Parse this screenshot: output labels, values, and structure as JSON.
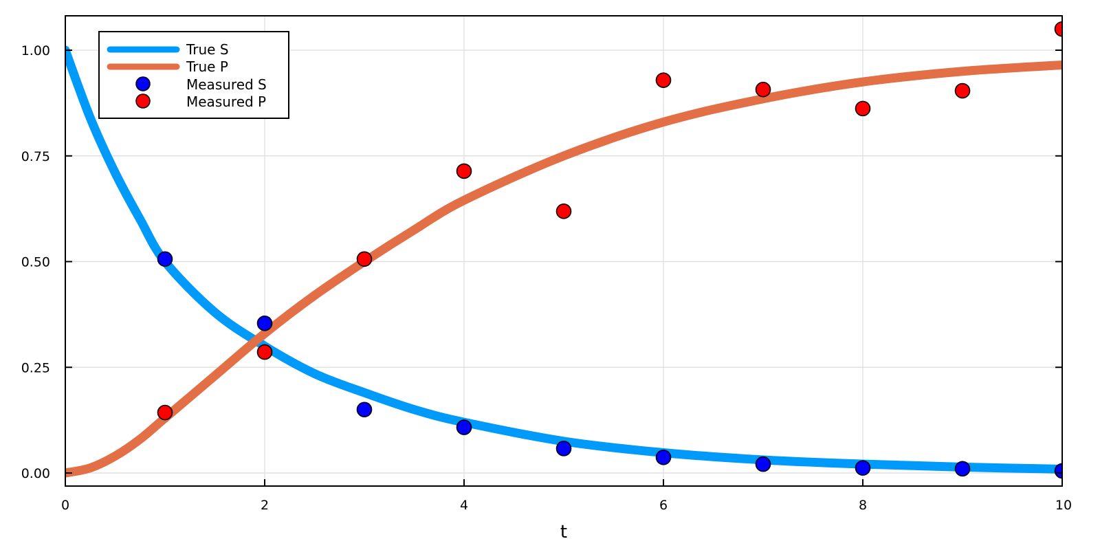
{
  "chart_data": {
    "type": "line",
    "title": "",
    "xlabel": "t",
    "ylabel": "",
    "xlim": [
      0,
      10
    ],
    "ylim": [
      -0.03,
      1.08
    ],
    "x_ticks": [
      0,
      2,
      4,
      6,
      8,
      10
    ],
    "x_tick_labels": [
      "0",
      "2",
      "4",
      "6",
      "8",
      "10"
    ],
    "y_ticks": [
      0,
      0.25,
      0.5,
      0.75,
      1.0
    ],
    "y_tick_labels": [
      "0.00",
      "0.25",
      "0.50",
      "0.75",
      "1.00"
    ],
    "grid": true,
    "legend_position": "top-left",
    "series": [
      {
        "name": "True S",
        "kind": "line",
        "color": "#009AFA",
        "x": [
          0,
          0.25,
          0.5,
          0.75,
          1,
          1.5,
          2,
          2.5,
          3,
          3.5,
          4,
          5,
          6,
          7,
          8,
          9,
          10
        ],
        "values": [
          1.0,
          0.84,
          0.71,
          0.6,
          0.5,
          0.38,
          0.3,
          0.235,
          0.19,
          0.15,
          0.12,
          0.075,
          0.048,
          0.031,
          0.021,
          0.014,
          0.009
        ]
      },
      {
        "name": "True P",
        "kind": "line",
        "color": "#E26F46",
        "x": [
          0,
          0.25,
          0.5,
          0.75,
          1,
          1.5,
          2,
          2.5,
          3,
          3.5,
          4,
          5,
          6,
          7,
          8,
          9,
          10
        ],
        "values": [
          0.0,
          0.012,
          0.04,
          0.08,
          0.13,
          0.23,
          0.33,
          0.42,
          0.5,
          0.575,
          0.645,
          0.75,
          0.83,
          0.885,
          0.925,
          0.95,
          0.965
        ]
      },
      {
        "name": "Measured S",
        "kind": "scatter",
        "color": "#0000FF",
        "x": [
          1,
          2,
          3,
          4,
          5,
          6,
          7,
          8,
          9,
          10
        ],
        "values": [
          0.506,
          0.354,
          0.15,
          0.108,
          0.058,
          0.037,
          0.021,
          0.012,
          0.01,
          0.005
        ]
      },
      {
        "name": "Measured P",
        "kind": "scatter",
        "color": "#FF0000",
        "x": [
          1,
          2,
          3,
          4,
          5,
          6,
          7,
          8,
          9,
          10
        ],
        "values": [
          0.143,
          0.286,
          0.506,
          0.714,
          0.619,
          0.929,
          0.907,
          0.862,
          0.904,
          1.05
        ]
      }
    ]
  },
  "legend": {
    "items": [
      "True S",
      "True P",
      "Measured S",
      "Measured P"
    ]
  }
}
